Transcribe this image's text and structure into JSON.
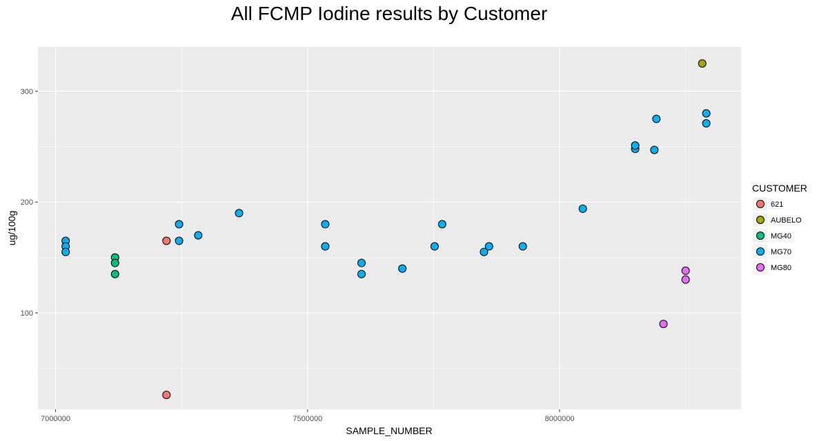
{
  "chart_data": {
    "type": "scatter",
    "title": "All FCMP Iodine results by Customer",
    "xlabel": "SAMPLE_NUMBER",
    "ylabel": "ug/100g",
    "xlim": [
      6965000,
      8360000
    ],
    "ylim": [
      13,
      340
    ],
    "x_ticks": [
      7000000,
      7500000,
      8000000
    ],
    "x_tick_labels": [
      "7000000",
      "7500000",
      "8000000"
    ],
    "x_minor": [
      7250000,
      7750000,
      8250000
    ],
    "y_ticks": [
      100,
      200,
      300
    ],
    "y_tick_labels": [
      "100",
      "200",
      "300"
    ],
    "y_minor": [
      50,
      150,
      250
    ],
    "grid": true,
    "legend": {
      "title": "CUSTOMER",
      "position": "right"
    },
    "colors": {
      "background": "#ebebeb",
      "grid": "#ffffff",
      "point_outline": "#000000"
    },
    "series": [
      {
        "name": "621",
        "color": "#F8766D",
        "points": [
          [
            7220000,
            165
          ],
          [
            7220000,
            26
          ]
        ]
      },
      {
        "name": "AUBELO",
        "color": "#A3A500",
        "points": [
          [
            8283000,
            325
          ]
        ]
      },
      {
        "name": "MG40",
        "color": "#00BF7D",
        "points": [
          [
            7118000,
            150
          ],
          [
            7118000,
            145
          ],
          [
            7118000,
            135
          ]
        ]
      },
      {
        "name": "MG70",
        "color": "#00B0F6",
        "points": [
          [
            7020000,
            165
          ],
          [
            7020000,
            160
          ],
          [
            7020000,
            155
          ],
          [
            7245000,
            180
          ],
          [
            7245000,
            165
          ],
          [
            7283000,
            170
          ],
          [
            7364000,
            190
          ],
          [
            7535000,
            180
          ],
          [
            7535000,
            160
          ],
          [
            7607000,
            145
          ],
          [
            7607000,
            135
          ],
          [
            7688000,
            140
          ],
          [
            7752000,
            160
          ],
          [
            7767000,
            180
          ],
          [
            7850000,
            155
          ],
          [
            7860000,
            160
          ],
          [
            7927000,
            160
          ],
          [
            8046000,
            194
          ],
          [
            8150000,
            248
          ],
          [
            8150000,
            251
          ],
          [
            8188000,
            247
          ],
          [
            8192000,
            275
          ],
          [
            8291000,
            280
          ],
          [
            8291000,
            271
          ]
        ]
      },
      {
        "name": "MG80",
        "color": "#E76BF3",
        "points": [
          [
            8250000,
            138
          ],
          [
            8250000,
            130
          ],
          [
            8206000,
            90
          ]
        ]
      }
    ]
  }
}
